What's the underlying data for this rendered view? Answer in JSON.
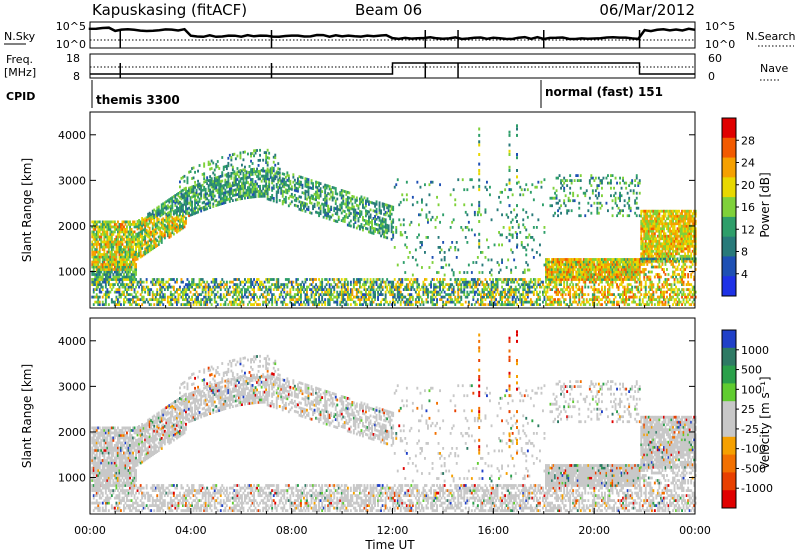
{
  "header": {
    "station": "Kapuskasing (fitACF)",
    "beam": "Beam 06",
    "date": "06/Mar/2012"
  },
  "panels": {
    "nsky": {
      "label": "N.Sky",
      "tick_top": "10^5",
      "tick_bottom": "10^0",
      "right_label": "N.Search",
      "right_tick_top": "10^5",
      "right_tick_bottom": "10^0"
    },
    "freq": {
      "label_line1": "Freq.",
      "label_line2": "[MHz]",
      "tick_top": "18",
      "tick_bottom": "8",
      "right_label": "Nave",
      "right_tick_top": "60",
      "right_tick_bottom": "0"
    },
    "cpid": {
      "label": "CPID",
      "segments": [
        {
          "label": "themis 3300",
          "start_hour": 0
        },
        {
          "label": "normal (fast) 151",
          "start_hour": 18
        }
      ]
    }
  },
  "chart_data": [
    {
      "type": "heatmap",
      "name": "power",
      "ylabel": "Slant Range [km]",
      "xlabel": "",
      "xlim": [
        0,
        24
      ],
      "ylim": [
        200,
        4500
      ],
      "yticks": [
        1000,
        2000,
        3000,
        4000
      ],
      "colorbar": {
        "label": "Power [dB]",
        "ticks": [
          "28",
          "24",
          "20",
          "16",
          "12",
          "8",
          "4"
        ],
        "colors": [
          "#e00000",
          "#f25a00",
          "#f5a000",
          "#e8d800",
          "#7fd13a",
          "#2e9e6a",
          "#287a7a",
          "#1e50b4",
          "#1e32e6"
        ]
      }
    },
    {
      "type": "heatmap",
      "name": "velocity",
      "ylabel": "Slant Range [km]",
      "xlabel": "Time UT",
      "xlim": [
        0,
        24
      ],
      "ylim": [
        200,
        4500
      ],
      "yticks": [
        1000,
        2000,
        3000,
        4000
      ],
      "xticks": [
        "00:00",
        "04:00",
        "08:00",
        "12:00",
        "16:00",
        "20:00",
        "00:00"
      ],
      "colorbar": {
        "label": "Velocity [m s⁻¹]",
        "ticks": [
          "1000",
          "500",
          "100",
          "25",
          "-25",
          "-100",
          "-500",
          "-1000"
        ],
        "colors": [
          "#2040c8",
          "#2e7a64",
          "#2aa04a",
          "#60cc30",
          "#c8c8c8",
          "#c8c8c8",
          "#f5a000",
          "#f27000",
          "#e84000",
          "#e00000"
        ]
      }
    }
  ]
}
